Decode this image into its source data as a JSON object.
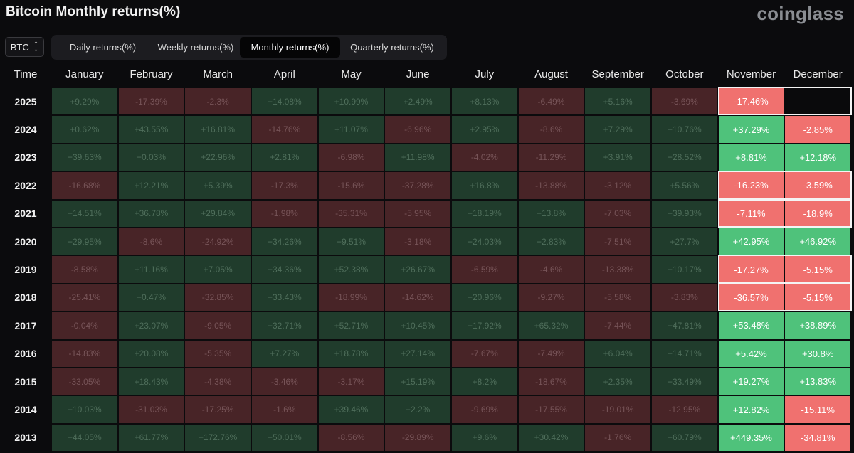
{
  "header": {
    "title": "Bitcoin Monthly returns(%)",
    "brand": "coinglass"
  },
  "asset_select": {
    "value": "BTC",
    "icon": "chevron-updown-icon"
  },
  "tabs": [
    {
      "label": "Daily returns(%)",
      "active": false
    },
    {
      "label": "Weekly returns(%)",
      "active": false
    },
    {
      "label": "Monthly returns(%)",
      "active": true
    },
    {
      "label": "Quarterly returns(%)",
      "active": false
    }
  ],
  "table": {
    "columns": [
      "Time",
      "January",
      "February",
      "March",
      "April",
      "May",
      "June",
      "July",
      "August",
      "September",
      "October",
      "November",
      "December"
    ],
    "highlighted_months": [
      "November",
      "December"
    ],
    "colors": {
      "positive": "#4fc27b",
      "negative": "#f0716f",
      "positive_dim": "#203c2c",
      "negative_dim": "#482427"
    },
    "rows": [
      {
        "year": "2025",
        "values": [
          "+9.29%",
          "-17.39%",
          "-2.3%",
          "+14.08%",
          "+10.99%",
          "+2.49%",
          "+8.13%",
          "-6.49%",
          "+5.16%",
          "-3.69%",
          "-17.46%",
          ""
        ],
        "outlined": true
      },
      {
        "year": "2024",
        "values": [
          "+0.62%",
          "+43.55%",
          "+16.81%",
          "-14.76%",
          "+11.07%",
          "-6.96%",
          "+2.95%",
          "-8.6%",
          "+7.29%",
          "+10.76%",
          "+37.29%",
          "-2.85%"
        ],
        "outlined": false
      },
      {
        "year": "2023",
        "values": [
          "+39.63%",
          "+0.03%",
          "+22.96%",
          "+2.81%",
          "-6.98%",
          "+11.98%",
          "-4.02%",
          "-11.29%",
          "+3.91%",
          "+28.52%",
          "+8.81%",
          "+12.18%"
        ],
        "outlined": false
      },
      {
        "year": "2022",
        "values": [
          "-16.68%",
          "+12.21%",
          "+5.39%",
          "-17.3%",
          "-15.6%",
          "-37.28%",
          "+16.8%",
          "-13.88%",
          "-3.12%",
          "+5.56%",
          "-16.23%",
          "-3.59%"
        ],
        "outlined": true
      },
      {
        "year": "2021",
        "values": [
          "+14.51%",
          "+36.78%",
          "+29.84%",
          "-1.98%",
          "-35.31%",
          "-5.95%",
          "+18.19%",
          "+13.8%",
          "-7.03%",
          "+39.93%",
          "-7.11%",
          "-18.9%"
        ],
        "outlined": true
      },
      {
        "year": "2020",
        "values": [
          "+29.95%",
          "-8.6%",
          "-24.92%",
          "+34.26%",
          "+9.51%",
          "-3.18%",
          "+24.03%",
          "+2.83%",
          "-7.51%",
          "+27.7%",
          "+42.95%",
          "+46.92%"
        ],
        "outlined": false
      },
      {
        "year": "2019",
        "values": [
          "-8.58%",
          "+11.16%",
          "+7.05%",
          "+34.36%",
          "+52.38%",
          "+26.67%",
          "-6.59%",
          "-4.6%",
          "-13.38%",
          "+10.17%",
          "-17.27%",
          "-5.15%"
        ],
        "outlined": true
      },
      {
        "year": "2018",
        "values": [
          "-25.41%",
          "+0.47%",
          "-32.85%",
          "+33.43%",
          "-18.99%",
          "-14.62%",
          "+20.96%",
          "-9.27%",
          "-5.58%",
          "-3.83%",
          "-36.57%",
          "-5.15%"
        ],
        "outlined": true
      },
      {
        "year": "2017",
        "values": [
          "-0.04%",
          "+23.07%",
          "-9.05%",
          "+32.71%",
          "+52.71%",
          "+10.45%",
          "+17.92%",
          "+65.32%",
          "-7.44%",
          "+47.81%",
          "+53.48%",
          "+38.89%"
        ],
        "outlined": false
      },
      {
        "year": "2016",
        "values": [
          "-14.83%",
          "+20.08%",
          "-5.35%",
          "+7.27%",
          "+18.78%",
          "+27.14%",
          "-7.67%",
          "-7.49%",
          "+6.04%",
          "+14.71%",
          "+5.42%",
          "+30.8%"
        ],
        "outlined": false
      },
      {
        "year": "2015",
        "values": [
          "-33.05%",
          "+18.43%",
          "-4.38%",
          "-3.46%",
          "-3.17%",
          "+15.19%",
          "+8.2%",
          "-18.67%",
          "+2.35%",
          "+33.49%",
          "+19.27%",
          "+13.83%"
        ],
        "outlined": false
      },
      {
        "year": "2014",
        "values": [
          "+10.03%",
          "-31.03%",
          "-17.25%",
          "-1.6%",
          "+39.46%",
          "+2.2%",
          "-9.69%",
          "-17.55%",
          "-19.01%",
          "-12.95%",
          "+12.82%",
          "-15.11%"
        ],
        "outlined": false
      },
      {
        "year": "2013",
        "values": [
          "+44.05%",
          "+61.77%",
          "+172.76%",
          "+50.01%",
          "-8.56%",
          "-29.89%",
          "+9.6%",
          "+30.42%",
          "-1.76%",
          "+60.79%",
          "+449.35%",
          "-34.81%"
        ],
        "outlined": false
      }
    ]
  }
}
